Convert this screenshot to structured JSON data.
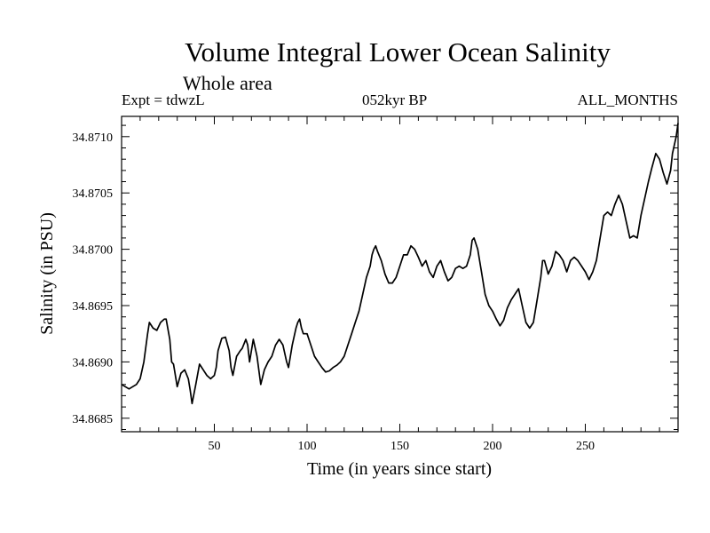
{
  "chart_data": {
    "type": "line",
    "title": "Volume Integral Lower Ocean Salinity",
    "subtitle": "Whole area",
    "experiment_label": "Expt = tdwzL",
    "period_label": "052kyr BP",
    "months_label": "ALL_MONTHS",
    "xlabel": "Time (in years since start)",
    "ylabel": "Salinity (in PSU)",
    "xlim": [
      0,
      300
    ],
    "ylim": [
      34.86838,
      34.87118
    ],
    "x_ticks": [
      50,
      100,
      150,
      200,
      250
    ],
    "y_ticks": [
      "34.8685",
      "34.8690",
      "34.8695",
      "34.8700",
      "34.8705",
      "34.8710"
    ],
    "grid": false,
    "series": [
      {
        "color": "#000000",
        "points": [
          [
            0,
            34.8688
          ],
          [
            2,
            34.86878
          ],
          [
            4,
            34.86876
          ],
          [
            6,
            34.86878
          ],
          [
            8,
            34.8688
          ],
          [
            10,
            34.86885
          ],
          [
            12,
            34.869
          ],
          [
            14,
            34.86925
          ],
          [
            15,
            34.86935
          ],
          [
            17,
            34.8693
          ],
          [
            19,
            34.86928
          ],
          [
            21,
            34.86935
          ],
          [
            23,
            34.86938
          ],
          [
            24,
            34.86938
          ],
          [
            26,
            34.8692
          ],
          [
            27,
            34.869
          ],
          [
            28,
            34.86898
          ],
          [
            30,
            34.86878
          ],
          [
            32,
            34.8689
          ],
          [
            34,
            34.86893
          ],
          [
            36,
            34.86885
          ],
          [
            37,
            34.86875
          ],
          [
            38,
            34.86863
          ],
          [
            40,
            34.8688
          ],
          [
            42,
            34.86898
          ],
          [
            44,
            34.86893
          ],
          [
            46,
            34.86888
          ],
          [
            48,
            34.86885
          ],
          [
            50,
            34.86888
          ],
          [
            51,
            34.86895
          ],
          [
            52,
            34.8691
          ],
          [
            54,
            34.86921
          ],
          [
            56,
            34.86922
          ],
          [
            58,
            34.8691
          ],
          [
            59,
            34.86895
          ],
          [
            60,
            34.86888
          ],
          [
            62,
            34.86905
          ],
          [
            64,
            34.8691
          ],
          [
            65,
            34.86912
          ],
          [
            67,
            34.8692
          ],
          [
            68,
            34.86915
          ],
          [
            69,
            34.869
          ],
          [
            70,
            34.8691
          ],
          [
            71,
            34.8692
          ],
          [
            73,
            34.86905
          ],
          [
            75,
            34.8688
          ],
          [
            77,
            34.86893
          ],
          [
            79,
            34.869
          ],
          [
            81,
            34.86905
          ],
          [
            83,
            34.86915
          ],
          [
            85,
            34.8692
          ],
          [
            87,
            34.86915
          ],
          [
            89,
            34.869
          ],
          [
            90,
            34.86895
          ],
          [
            92,
            34.86915
          ],
          [
            94,
            34.8693
          ],
          [
            95,
            34.86935
          ],
          [
            96,
            34.86938
          ],
          [
            97,
            34.8693
          ],
          [
            98,
            34.86925
          ],
          [
            100,
            34.86925
          ],
          [
            102,
            34.86915
          ],
          [
            104,
            34.86905
          ],
          [
            106,
            34.869
          ],
          [
            108,
            34.86895
          ],
          [
            110,
            34.86891
          ],
          [
            112,
            34.86892
          ],
          [
            114,
            34.86895
          ],
          [
            116,
            34.86897
          ],
          [
            118,
            34.869
          ],
          [
            120,
            34.86905
          ],
          [
            122,
            34.86915
          ],
          [
            124,
            34.86925
          ],
          [
            126,
            34.86935
          ],
          [
            128,
            34.86945
          ],
          [
            130,
            34.8696
          ],
          [
            132,
            34.86975
          ],
          [
            134,
            34.86985
          ],
          [
            135,
            34.86995
          ],
          [
            136,
            34.87
          ],
          [
            137,
            34.87003
          ],
          [
            138,
            34.86998
          ],
          [
            140,
            34.8699
          ],
          [
            142,
            34.86978
          ],
          [
            144,
            34.8697
          ],
          [
            146,
            34.8697
          ],
          [
            148,
            34.86975
          ],
          [
            150,
            34.86985
          ],
          [
            152,
            34.86995
          ],
          [
            154,
            34.86995
          ],
          [
            156,
            34.87003
          ],
          [
            158,
            34.87
          ],
          [
            160,
            34.86993
          ],
          [
            162,
            34.86985
          ],
          [
            164,
            34.8699
          ],
          [
            166,
            34.8698
          ],
          [
            168,
            34.86975
          ],
          [
            170,
            34.86985
          ],
          [
            172,
            34.8699
          ],
          [
            174,
            34.8698
          ],
          [
            176,
            34.86972
          ],
          [
            178,
            34.86975
          ],
          [
            180,
            34.86983
          ],
          [
            182,
            34.86985
          ],
          [
            184,
            34.86983
          ],
          [
            186,
            34.86985
          ],
          [
            188,
            34.86995
          ],
          [
            189,
            34.87008
          ],
          [
            190,
            34.8701
          ],
          [
            192,
            34.87
          ],
          [
            194,
            34.8698
          ],
          [
            196,
            34.8696
          ],
          [
            198,
            34.8695
          ],
          [
            200,
            34.86945
          ],
          [
            202,
            34.86938
          ],
          [
            204,
            34.86932
          ],
          [
            206,
            34.86937
          ],
          [
            208,
            34.86948
          ],
          [
            210,
            34.86955
          ],
          [
            212,
            34.8696
          ],
          [
            214,
            34.86965
          ],
          [
            216,
            34.8695
          ],
          [
            218,
            34.86935
          ],
          [
            220,
            34.8693
          ],
          [
            222,
            34.86935
          ],
          [
            224,
            34.86955
          ],
          [
            226,
            34.86975
          ],
          [
            227,
            34.8699
          ],
          [
            228,
            34.8699
          ],
          [
            230,
            34.86978
          ],
          [
            232,
            34.86985
          ],
          [
            234,
            34.86998
          ],
          [
            236,
            34.86995
          ],
          [
            238,
            34.8699
          ],
          [
            240,
            34.8698
          ],
          [
            242,
            34.8699
          ],
          [
            244,
            34.86993
          ],
          [
            246,
            34.8699
          ],
          [
            248,
            34.86985
          ],
          [
            250,
            34.8698
          ],
          [
            252,
            34.86973
          ],
          [
            254,
            34.8698
          ],
          [
            256,
            34.8699
          ],
          [
            258,
            34.8701
          ],
          [
            260,
            34.8703
          ],
          [
            262,
            34.87033
          ],
          [
            264,
            34.8703
          ],
          [
            266,
            34.8704
          ],
          [
            268,
            34.87048
          ],
          [
            270,
            34.8704
          ],
          [
            272,
            34.87025
          ],
          [
            274,
            34.8701
          ],
          [
            276,
            34.87012
          ],
          [
            278,
            34.8701
          ],
          [
            280,
            34.8703
          ],
          [
            282,
            34.87045
          ],
          [
            284,
            34.8706
          ],
          [
            286,
            34.87073
          ],
          [
            288,
            34.87085
          ],
          [
            290,
            34.8708
          ],
          [
            292,
            34.87068
          ],
          [
            294,
            34.87058
          ],
          [
            296,
            34.8707
          ],
          [
            297,
            34.87085
          ],
          [
            299,
            34.871
          ],
          [
            300,
            34.87112
          ]
        ]
      }
    ]
  }
}
